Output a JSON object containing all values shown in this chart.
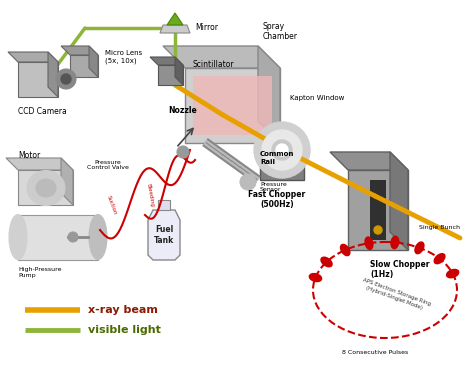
{
  "bg_color": "#ffffff",
  "xray_beam_color": "#E8A000",
  "visible_light_color": "#8DB53A",
  "legend_xray_label": "x-ray beam",
  "legend_light_label": "visible light",
  "legend_xray_text_color": "#8B1A00",
  "legend_light_text_color": "#4A6B00",
  "storage_ring_color": "#CC0000",
  "storage_ring_label": "APS Electron Storage Ring\n(Hybrid-Singlet Mode)",
  "labels": {
    "mirror": "Mirror",
    "scintillator": "Scintillator",
    "micro_lens": "Micro Lens\n(5x, 10x)",
    "ccd_camera": "CCD Camera",
    "spray_chamber": "Spray\nChamber",
    "kapton_window": "Kapton Window",
    "nozzle": "Nozzle",
    "fast_chopper": "Fast Chopper\n(500Hz)",
    "common_rail": "Common\nRail",
    "pressure_sensor": "Pressure\nSensor",
    "slow_chopper": "Slow Chopper\n(1Hz)",
    "motor": "Motor",
    "pressure_control_valve": "Pressure\nControl Valve",
    "high_pressure_pump": "High-Pressure\nPump",
    "fuel_tank": "Fuel\nTank",
    "single_bunch": "Single Bunch",
    "consecutive_pulses": "8 Consecutive Pulses",
    "suction": "Suction",
    "bleeding": "Bleeding"
  },
  "figsize": [
    4.74,
    3.73
  ],
  "dpi": 100
}
